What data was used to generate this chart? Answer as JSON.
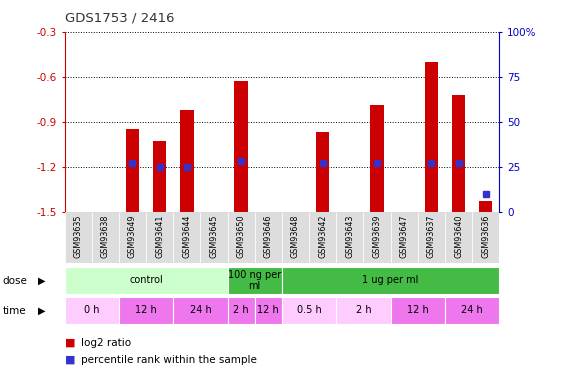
{
  "title": "GDS1753 / 2416",
  "samples": [
    "GSM93635",
    "GSM93638",
    "GSM93649",
    "GSM93641",
    "GSM93644",
    "GSM93645",
    "GSM93650",
    "GSM93646",
    "GSM93648",
    "GSM93642",
    "GSM93643",
    "GSM93639",
    "GSM93647",
    "GSM93637",
    "GSM93640",
    "GSM93636"
  ],
  "log2_ratio": [
    0,
    0,
    -0.95,
    -1.03,
    -0.82,
    0,
    -0.63,
    0,
    0,
    -0.97,
    0,
    -0.79,
    0,
    -0.5,
    -0.72,
    -1.43
  ],
  "percentile_rank": [
    0,
    0,
    27,
    25,
    25,
    0,
    28,
    0,
    0,
    27,
    0,
    27,
    0,
    27,
    27,
    10
  ],
  "has_bar": [
    false,
    false,
    true,
    true,
    true,
    false,
    true,
    false,
    false,
    true,
    false,
    true,
    false,
    true,
    true,
    true
  ],
  "has_dot": [
    false,
    false,
    true,
    true,
    true,
    false,
    true,
    false,
    false,
    true,
    false,
    true,
    false,
    true,
    true,
    true
  ],
  "ylim_left": [
    -1.5,
    -0.3
  ],
  "ylim_right": [
    0,
    100
  ],
  "left_ticks": [
    -1.5,
    -1.2,
    -0.9,
    -0.6,
    -0.3
  ],
  "right_ticks": [
    0,
    25,
    50,
    75,
    100
  ],
  "bar_color": "#cc0000",
  "dot_color": "#3333cc",
  "background_color": "#ffffff",
  "dose_groups": [
    {
      "label": "control",
      "start": 0,
      "end": 6,
      "color": "#ccffcc"
    },
    {
      "label": "100 ng per\nml",
      "start": 6,
      "end": 8,
      "color": "#44bb44"
    },
    {
      "label": "1 ug per ml",
      "start": 8,
      "end": 16,
      "color": "#44bb44"
    }
  ],
  "time_groups": [
    {
      "label": "0 h",
      "start": 0,
      "end": 2,
      "color": "#ffccff"
    },
    {
      "label": "12 h",
      "start": 2,
      "end": 4,
      "color": "#ee77ee"
    },
    {
      "label": "24 h",
      "start": 4,
      "end": 6,
      "color": "#ee77ee"
    },
    {
      "label": "2 h",
      "start": 6,
      "end": 7,
      "color": "#ee77ee"
    },
    {
      "label": "12 h",
      "start": 7,
      "end": 8,
      "color": "#ee77ee"
    },
    {
      "label": "0.5 h",
      "start": 8,
      "end": 10,
      "color": "#ffccff"
    },
    {
      "label": "2 h",
      "start": 10,
      "end": 12,
      "color": "#ffccff"
    },
    {
      "label": "12 h",
      "start": 12,
      "end": 14,
      "color": "#ee77ee"
    },
    {
      "label": "24 h",
      "start": 14,
      "end": 16,
      "color": "#ee77ee"
    }
  ],
  "tick_label_color_left": "#cc0000",
  "tick_label_color_right": "#0000cc",
  "bar_width": 0.5
}
